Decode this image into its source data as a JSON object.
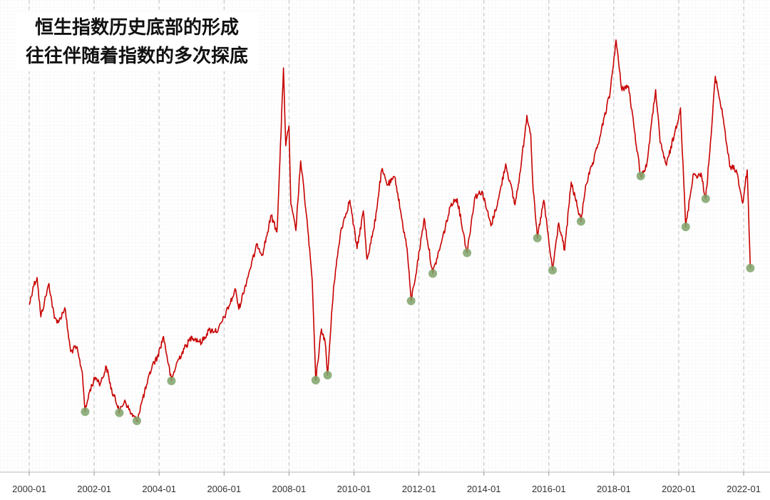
{
  "chart_data": {
    "type": "line",
    "title_lines": [
      "恒生指数历史底部的形成",
      "往往伴随着指数的多次探底"
    ],
    "xlabel": "",
    "ylabel": "",
    "x_tick_labels": [
      "2000-01",
      "2002-01",
      "2004-01",
      "2006-01",
      "2008-01",
      "2010-01",
      "2012-01",
      "2014-01",
      "2016-01",
      "2018-01",
      "2020-01",
      "2022-01"
    ],
    "x_range": [
      "2000-01",
      "2022-04"
    ],
    "y_axis_visible": false,
    "grid": {
      "vertical_dashed": true,
      "background_fine_grid": true
    },
    "series": [
      {
        "color": "#c80000",
        "points": [
          [
            "2000-01-03",
            16000
          ],
          [
            "2000-02-15",
            17200
          ],
          [
            "2000-03-28",
            17800
          ],
          [
            "2000-05-10",
            15200
          ],
          [
            "2000-06-20",
            16200
          ],
          [
            "2000-08-10",
            17400
          ],
          [
            "2000-10-10",
            15100
          ],
          [
            "2000-12-01",
            14900
          ],
          [
            "2001-02-05",
            15800
          ],
          [
            "2001-04-10",
            12900
          ],
          [
            "2001-06-15",
            13200
          ],
          [
            "2001-08-20",
            11500
          ],
          [
            "2001-09-21",
            8934
          ],
          [
            "2001-11-15",
            10400
          ],
          [
            "2002-01-15",
            11200
          ],
          [
            "2002-03-10",
            10800
          ],
          [
            "2002-05-17",
            11900
          ],
          [
            "2002-07-20",
            10200
          ],
          [
            "2002-09-30",
            9300
          ],
          [
            "2002-10-10",
            8858
          ],
          [
            "2002-12-10",
            9700
          ],
          [
            "2003-02-10",
            8900
          ],
          [
            "2003-04-25",
            8331
          ],
          [
            "2003-06-20",
            9600
          ],
          [
            "2003-08-20",
            10800
          ],
          [
            "2003-10-15",
            12000
          ],
          [
            "2003-12-10",
            12500
          ],
          [
            "2004-02-20",
            13900
          ],
          [
            "2004-05-17",
            10968
          ],
          [
            "2004-07-20",
            12200
          ],
          [
            "2004-10-10",
            13100
          ],
          [
            "2005-01-05",
            13900
          ],
          [
            "2005-04-20",
            13500
          ],
          [
            "2005-07-10",
            14300
          ],
          [
            "2005-10-25",
            14300
          ],
          [
            "2006-01-20",
            15400
          ],
          [
            "2006-05-10",
            17000
          ],
          [
            "2006-06-14",
            15700
          ],
          [
            "2006-10-10",
            18200
          ],
          [
            "2007-01-10",
            20000
          ],
          [
            "2007-03-05",
            19300
          ],
          [
            "2007-06-15",
            21900
          ],
          [
            "2007-08-17",
            20800
          ],
          [
            "2007-09-20",
            25500
          ],
          [
            "2007-10-30",
            31638
          ],
          [
            "2007-11-25",
            26500
          ],
          [
            "2007-12-31",
            27800
          ],
          [
            "2008-01-22",
            22600
          ],
          [
            "2008-03-17",
            20900
          ],
          [
            "2008-05-10",
            25500
          ],
          [
            "2008-07-15",
            21900
          ],
          [
            "2008-09-18",
            17600
          ],
          [
            "2008-10-27",
            11015
          ],
          [
            "2008-12-31",
            14400
          ],
          [
            "2009-02-10",
            13600
          ],
          [
            "2009-03-09",
            11345
          ],
          [
            "2009-05-15",
            17200
          ],
          [
            "2009-08-05",
            20900
          ],
          [
            "2009-11-15",
            22900
          ],
          [
            "2010-02-05",
            19700
          ],
          [
            "2010-04-15",
            22200
          ],
          [
            "2010-05-25",
            19000
          ],
          [
            "2010-08-15",
            21100
          ],
          [
            "2010-11-08",
            24900
          ],
          [
            "2011-01-15",
            23900
          ],
          [
            "2011-04-08",
            24400
          ],
          [
            "2011-06-20",
            21700
          ],
          [
            "2011-08-20",
            19700
          ],
          [
            "2011-10-04",
            16250
          ],
          [
            "2011-12-10",
            18500
          ],
          [
            "2012-02-29",
            21700
          ],
          [
            "2012-06-04",
            18056
          ],
          [
            "2012-09-10",
            20100
          ],
          [
            "2012-12-31",
            22700
          ],
          [
            "2013-03-05",
            23000
          ],
          [
            "2013-06-25",
            19426
          ],
          [
            "2013-09-20",
            23100
          ],
          [
            "2013-12-10",
            23500
          ],
          [
            "2014-03-20",
            21200
          ],
          [
            "2014-06-15",
            23000
          ],
          [
            "2014-09-03",
            25300
          ],
          [
            "2014-12-16",
            22600
          ],
          [
            "2015-02-15",
            24800
          ],
          [
            "2015-04-28",
            28500
          ],
          [
            "2015-06-10",
            27300
          ],
          [
            "2015-07-08",
            23500
          ],
          [
            "2015-08-24",
            20400
          ],
          [
            "2015-11-05",
            22900
          ],
          [
            "2016-01-15",
            19500
          ],
          [
            "2016-02-12",
            18279
          ],
          [
            "2016-04-20",
            21400
          ],
          [
            "2016-06-27",
            19600
          ],
          [
            "2016-09-09",
            24100
          ],
          [
            "2016-12-28",
            21500
          ],
          [
            "2017-02-20",
            23900
          ],
          [
            "2017-05-20",
            25500
          ],
          [
            "2017-08-10",
            27400
          ],
          [
            "2017-11-20",
            30000
          ],
          [
            "2018-01-26",
            33484
          ],
          [
            "2018-03-26",
            30300
          ],
          [
            "2018-06-15",
            30400
          ],
          [
            "2018-08-20",
            27500
          ],
          [
            "2018-10-30",
            24500
          ],
          [
            "2019-01-03",
            25100
          ],
          [
            "2019-04-15",
            30200
          ],
          [
            "2019-06-05",
            26700
          ],
          [
            "2019-08-15",
            25200
          ],
          [
            "2019-11-15",
            27300
          ],
          [
            "2020-01-20",
            29000
          ],
          [
            "2020-03-19",
            21139
          ],
          [
            "2020-06-10",
            24600
          ],
          [
            "2020-09-15",
            24500
          ],
          [
            "2020-10-30",
            23000
          ],
          [
            "2020-12-31",
            27200
          ],
          [
            "2021-02-17",
            31085
          ],
          [
            "2021-05-15",
            28300
          ],
          [
            "2021-07-27",
            25100
          ],
          [
            "2021-10-10",
            24900
          ],
          [
            "2021-12-20",
            22700
          ],
          [
            "2022-02-10",
            24900
          ],
          [
            "2022-03-15",
            18415
          ]
        ]
      }
    ],
    "bottom_markers": {
      "color": "#7fa36a",
      "points": [
        [
          "2001-09-21",
          8934
        ],
        [
          "2002-10-10",
          8858
        ],
        [
          "2003-04-25",
          8331
        ],
        [
          "2004-05-17",
          10968
        ],
        [
          "2008-10-27",
          11015
        ],
        [
          "2009-03-09",
          11345
        ],
        [
          "2011-10-04",
          16250
        ],
        [
          "2012-06-04",
          18056
        ],
        [
          "2013-06-25",
          19426
        ],
        [
          "2015-08-24",
          20400
        ],
        [
          "2016-02-12",
          18279
        ],
        [
          "2016-12-28",
          21500
        ],
        [
          "2018-10-30",
          24500
        ],
        [
          "2020-03-19",
          21139
        ],
        [
          "2020-10-30",
          23000
        ],
        [
          "2022-03-15",
          18415
        ]
      ]
    }
  }
}
